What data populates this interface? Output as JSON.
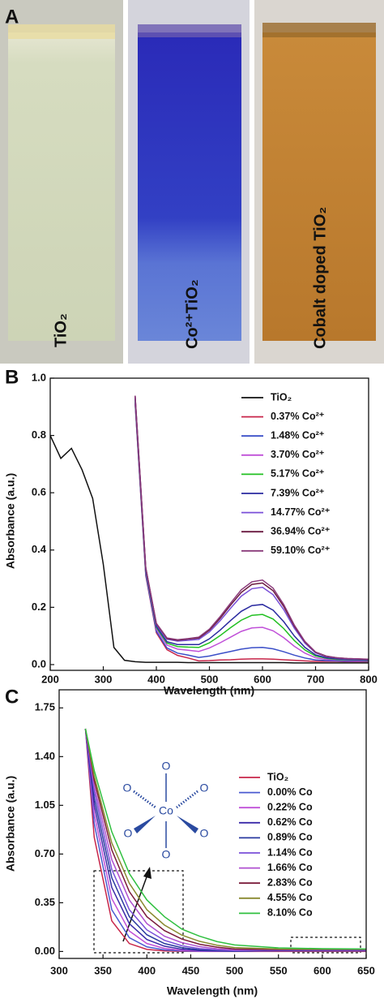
{
  "panel_a": {
    "label": "A",
    "samples": [
      "TiO₂",
      "Co²⁺TiO₂",
      "Cobalt doped TiO₂"
    ]
  },
  "chart_data": [
    {
      "type": "line",
      "label": "B",
      "xlabel": "Wavelength (nm)",
      "ylabel": "Absorbance (a.u.)",
      "xlim": [
        200,
        800
      ],
      "ylim": [
        -0.02,
        1.0
      ],
      "xticks": [
        200,
        300,
        400,
        500,
        600,
        700,
        800
      ],
      "yticks": [
        {
          "value": 0,
          "label": "0.0"
        },
        0.2,
        0.4,
        0.6,
        0.8,
        {
          "value": 1,
          "label": "1.0"
        }
      ],
      "x": [
        200,
        220,
        240,
        260,
        280,
        300,
        320,
        340,
        360,
        380,
        400,
        420,
        440,
        460,
        480,
        500,
        520,
        540,
        560,
        580,
        600,
        620,
        640,
        660,
        680,
        700,
        720,
        740,
        760,
        780,
        800
      ],
      "series": [
        {
          "name": "TiO₂",
          "color": "#111111",
          "values": [
            0.8,
            0.72,
            0.755,
            0.68,
            0.58,
            0.35,
            0.06,
            0.015,
            0.01,
            0.008,
            0.008,
            0.008,
            0.008,
            0.007,
            0.007,
            0.007,
            0.007,
            0.007,
            0.007,
            0.007,
            0.007,
            0.007,
            0.007,
            0.006,
            0.006,
            0.006,
            0.006,
            0.006,
            0.006,
            0.006,
            0.006
          ]
        },
        {
          "name": "0.37% Co²⁺",
          "color": "#c8264a",
          "values": [
            null,
            null,
            null,
            null,
            null,
            null,
            null,
            null,
            0.911,
            0.311,
            0.111,
            0.052,
            0.032,
            0.023,
            0.013,
            0.014,
            0.016,
            0.017,
            0.019,
            0.02,
            0.02,
            0.019,
            0.017,
            0.015,
            0.013,
            0.011,
            0.011,
            0.011,
            0.01,
            0.01,
            0.01
          ]
        },
        {
          "name": "1.48% Co²⁺",
          "color": "#3b4fc8",
          "values": [
            null,
            null,
            null,
            null,
            null,
            null,
            null,
            null,
            0.915,
            0.315,
            0.116,
            0.058,
            0.04,
            0.033,
            0.025,
            0.03,
            0.038,
            0.046,
            0.054,
            0.059,
            0.06,
            0.055,
            0.045,
            0.033,
            0.023,
            0.016,
            0.014,
            0.013,
            0.012,
            0.012,
            0.012
          ]
        },
        {
          "name": "3.70% Co²⁺",
          "color": "#c050d8",
          "values": [
            null,
            null,
            null,
            null,
            null,
            null,
            null,
            null,
            0.922,
            0.322,
            0.124,
            0.068,
            0.054,
            0.05,
            0.046,
            0.058,
            0.076,
            0.096,
            0.116,
            0.128,
            0.13,
            0.118,
            0.094,
            0.064,
            0.04,
            0.024,
            0.018,
            0.016,
            0.015,
            0.014,
            0.014
          ]
        },
        {
          "name": "5.17% Co²⁺",
          "color": "#22c022",
          "values": [
            null,
            null,
            null,
            null,
            null,
            null,
            null,
            null,
            0.927,
            0.327,
            0.13,
            0.075,
            0.063,
            0.061,
            0.06,
            0.076,
            0.101,
            0.129,
            0.155,
            0.172,
            0.175,
            0.159,
            0.126,
            0.084,
            0.051,
            0.03,
            0.022,
            0.018,
            0.017,
            0.016,
            0.015
          ]
        },
        {
          "name": "7.39% Co²⁺",
          "color": "#2a2aa0",
          "values": [
            null,
            null,
            null,
            null,
            null,
            null,
            null,
            null,
            0.93,
            0.33,
            0.134,
            0.08,
            0.07,
            0.07,
            0.07,
            0.09,
            0.12,
            0.154,
            0.186,
            0.206,
            0.21,
            0.19,
            0.15,
            0.1,
            0.06,
            0.034,
            0.024,
            0.02,
            0.018,
            0.017,
            0.016
          ]
        },
        {
          "name": "14.77% Co²⁺",
          "color": "#7a4fd8",
          "values": [
            null,
            null,
            null,
            null,
            null,
            null,
            null,
            null,
            0.936,
            0.336,
            0.141,
            0.089,
            0.082,
            0.085,
            0.088,
            0.114,
            0.153,
            0.197,
            0.239,
            0.265,
            0.27,
            0.244,
            0.192,
            0.127,
            0.075,
            0.041,
            0.028,
            0.023,
            0.02,
            0.019,
            0.018
          ]
        },
        {
          "name": "36.94% Co²⁺",
          "color": "#6a1a40",
          "values": [
            null,
            null,
            null,
            null,
            null,
            null,
            null,
            null,
            0.938,
            0.338,
            0.143,
            0.091,
            0.085,
            0.089,
            0.093,
            0.12,
            0.161,
            0.208,
            0.252,
            0.28,
            0.285,
            0.258,
            0.203,
            0.134,
            0.079,
            0.043,
            0.029,
            0.024,
            0.021,
            0.02,
            0.018
          ]
        },
        {
          "name": "59.10% Co²⁺",
          "color": "#8a3a7a",
          "values": [
            null,
            null,
            null,
            null,
            null,
            null,
            null,
            null,
            0.939,
            0.339,
            0.144,
            0.093,
            0.087,
            0.091,
            0.096,
            0.124,
            0.167,
            0.215,
            0.261,
            0.289,
            0.295,
            0.267,
            0.21,
            0.138,
            0.081,
            0.044,
            0.03,
            0.024,
            0.021,
            0.02,
            0.019
          ]
        }
      ]
    },
    {
      "type": "line",
      "label": "C",
      "xlabel": "Wavelength (nm)",
      "ylabel": "Absorbance (a.u.)",
      "xlim": [
        300,
        650
      ],
      "ylim": [
        -0.05,
        1.88
      ],
      "xticks": [
        300,
        350,
        400,
        450,
        500,
        550,
        600,
        650
      ],
      "yticks": [
        {
          "value": 0,
          "label": "0.00"
        },
        0.35,
        {
          "value": 0.7,
          "label": "0.70"
        },
        1.05,
        {
          "value": 1.4,
          "label": "1.40"
        },
        1.75
      ],
      "x": [
        330,
        340,
        360,
        380,
        400,
        420,
        440,
        460,
        480,
        500,
        550,
        600,
        650
      ],
      "series": [
        {
          "name": "TiO₂",
          "color": "#c8264a",
          "values": [
            1.6,
            0.82,
            0.22,
            0.057,
            0.015,
            0.004,
            0.001,
            0,
            0,
            0,
            0,
            0,
            0
          ]
        },
        {
          "name": "0.00% Co",
          "color": "#4a5ad0",
          "values": [
            1.6,
            0.92,
            0.3,
            0.099,
            0.033,
            0.011,
            0.004,
            0.001,
            0.001,
            0.001,
            0.005,
            0.005,
            0.005
          ]
        },
        {
          "name": "0.22% Co",
          "color": "#c050d8",
          "values": [
            1.6,
            0.99,
            0.38,
            0.147,
            0.057,
            0.022,
            0.008,
            0.003,
            0.001,
            0.001,
            0.008,
            0.008,
            0.008
          ]
        },
        {
          "name": "0.62% Co",
          "color": "#3a2aa8",
          "values": [
            1.6,
            1.05,
            0.46,
            0.2,
            0.086,
            0.038,
            0.016,
            0.007,
            0.003,
            0.001,
            0.01,
            0.01,
            0.01
          ]
        },
        {
          "name": "0.89% Co",
          "color": "#2a3aa0",
          "values": [
            1.6,
            1.1,
            0.53,
            0.25,
            0.12,
            0.057,
            0.027,
            0.013,
            0.006,
            0.003,
            0.012,
            0.012,
            0.012
          ]
        },
        {
          "name": "1.14% Co",
          "color": "#7a4fd8",
          "values": [
            1.6,
            1.15,
            0.59,
            0.3,
            0.155,
            0.08,
            0.041,
            0.021,
            0.011,
            0.006,
            0.013,
            0.013,
            0.013
          ]
        },
        {
          "name": "1.66% Co",
          "color": "#b050d0",
          "values": [
            1.6,
            1.19,
            0.66,
            0.37,
            0.2,
            0.11,
            0.063,
            0.035,
            0.019,
            0.011,
            0.014,
            0.014,
            0.014
          ]
        },
        {
          "name": "2.83% Co",
          "color": "#7a1a3a",
          "values": [
            1.6,
            1.23,
            0.73,
            0.43,
            0.25,
            0.15,
            0.089,
            0.052,
            0.031,
            0.018,
            0.015,
            0.015,
            0.015
          ]
        },
        {
          "name": "4.55% Co",
          "color": "#8a8a30",
          "values": [
            1.6,
            1.26,
            0.78,
            0.49,
            0.3,
            0.19,
            0.117,
            0.073,
            0.045,
            0.028,
            0.018,
            0.016,
            0.016
          ]
        },
        {
          "name": "8.10% Co",
          "color": "#30c040",
          "values": [
            1.6,
            1.3,
            0.86,
            0.56,
            0.37,
            0.25,
            0.16,
            0.11,
            0.071,
            0.047,
            0.026,
            0.02,
            0.018
          ]
        }
      ],
      "annotations": {
        "center": "Co",
        "ligands": [
          "O",
          "O",
          "O",
          "O",
          "O",
          "O"
        ]
      }
    }
  ]
}
